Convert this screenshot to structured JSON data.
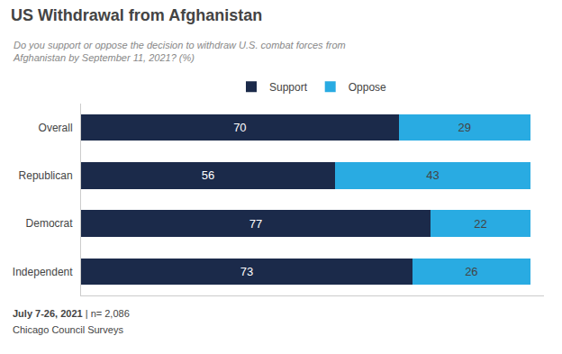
{
  "chart_data": {
    "type": "bar",
    "orientation": "horizontal",
    "stacked": true,
    "title": "US Withdrawal from Afghanistan",
    "subtitle": [
      "Do you support or oppose the decision to withdraw U.S. combat forces from",
      "Afghanistan by September 11, 2021? (%)"
    ],
    "categories": [
      "Overall",
      "Republican",
      "Democrat",
      "Independent"
    ],
    "series": [
      {
        "name": "Support",
        "color": "#1b2a4a",
        "values": [
          70,
          56,
          77,
          73
        ]
      },
      {
        "name": "Oppose",
        "color": "#29abe2",
        "values": [
          29,
          43,
          22,
          26
        ]
      }
    ],
    "xlim": [
      0,
      102
    ],
    "tick_labels": "y",
    "data_labels": true,
    "grid": false,
    "legend": "top",
    "annotations": [
      "July 7-26, 2021",
      "| n= 2,086",
      "Chicago Council Surveys"
    ]
  }
}
